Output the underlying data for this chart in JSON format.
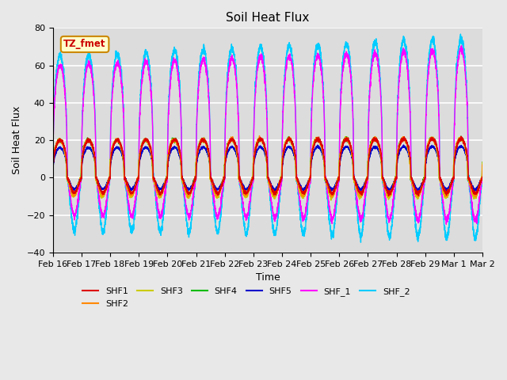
{
  "title": "Soil Heat Flux",
  "xlabel": "Time",
  "ylabel": "Soil Heat Flux",
  "ylim": [
    -40,
    80
  ],
  "annotation_text": "TZ_fmet",
  "annotation_color": "#cc0000",
  "annotation_bg": "#ffffcc",
  "annotation_border": "#cc8800",
  "series": [
    "SHF1",
    "SHF2",
    "SHF3",
    "SHF4",
    "SHF5",
    "SHF_1",
    "SHF_2"
  ],
  "colors": [
    "#dd0000",
    "#ff8800",
    "#cccc00",
    "#00bb00",
    "#0000cc",
    "#ff00ff",
    "#00ccff"
  ],
  "xtick_labels": [
    "Feb 16",
    "Feb 17",
    "Feb 18",
    "Feb 19",
    "Feb 20",
    "Feb 21",
    "Feb 22",
    "Feb 23",
    "Feb 24",
    "Feb 25",
    "Feb 26",
    "Feb 27",
    "Feb 28",
    "Feb 29",
    "Mar 1",
    "Mar 2"
  ],
  "bg_color": "#e8e8e8",
  "plot_bg_color": "#dcdcdc",
  "grid_color": "#ffffff",
  "linewidth": 1.0,
  "n_days": 15,
  "points_per_day": 288,
  "fig_facecolor": "#e8e8e8"
}
